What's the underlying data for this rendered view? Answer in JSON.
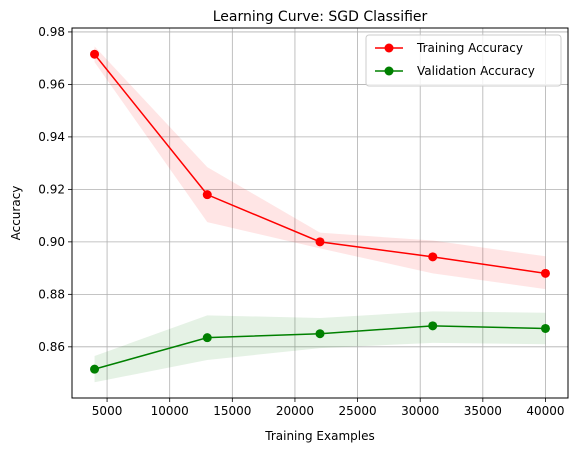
{
  "chart_data": {
    "type": "line",
    "title": "Learning Curve: SGD Classifier",
    "xlabel": "Training Examples",
    "ylabel": "Accuracy",
    "xlim": [
      2200,
      41800
    ],
    "ylim": [
      0.8405,
      0.9815
    ],
    "x_ticks": [
      5000,
      10000,
      15000,
      20000,
      25000,
      30000,
      35000,
      40000
    ],
    "y_ticks": [
      0.86,
      0.88,
      0.9,
      0.92,
      0.94,
      0.96,
      0.98
    ],
    "grid": true,
    "legend_position": "top-right",
    "x": [
      4000,
      13000,
      22000,
      31000,
      40000
    ],
    "series": [
      {
        "name": "Training Accuracy",
        "color": "#ff0000",
        "band_color": "#ff0000",
        "values": [
          0.9715,
          0.918,
          0.9,
          0.8943,
          0.888
        ],
        "band_upper": [
          0.9745,
          0.9285,
          0.9035,
          0.9005,
          0.8945
        ],
        "band_lower": [
          0.9685,
          0.9075,
          0.8975,
          0.888,
          0.882
        ]
      },
      {
        "name": "Validation Accuracy",
        "color": "#008000",
        "band_color": "#008000",
        "values": [
          0.8515,
          0.8635,
          0.865,
          0.868,
          0.867
        ],
        "band_upper": [
          0.8565,
          0.872,
          0.871,
          0.8735,
          0.873
        ],
        "band_lower": [
          0.8465,
          0.855,
          0.8595,
          0.8615,
          0.861
        ]
      }
    ]
  }
}
